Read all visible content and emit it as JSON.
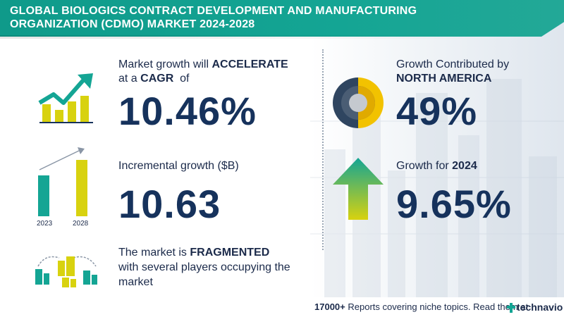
{
  "header": {
    "title_line1": "GLOBAL BIOLOGICS CONTRACT DEVELOPMENT AND MANUFACTURING",
    "title_line2": "ORGANIZATION (CDMO) MARKET 2024-2028"
  },
  "cagr": {
    "text_prefix": "Market growth will ",
    "text_bold": "ACCELERATE",
    "line2_prefix": "at a ",
    "line2_bold": "CAGR",
    "line2_suffix": "  of",
    "value": "10.46%"
  },
  "incremental": {
    "label": "Incremental growth ($B)",
    "value": "10.63",
    "bar_year_start": "2023",
    "bar_year_end": "2028"
  },
  "market": {
    "text_prefix": "The market is ",
    "text_bold": "FRAGMENTED",
    "line2": "with several players occupying the",
    "line3": "market"
  },
  "region": {
    "label": "Growth Contributed by",
    "region_name": "NORTH AMERICA",
    "value": "49%"
  },
  "growth_year": {
    "label_prefix": "Growth for ",
    "year": "2024",
    "value": "9.65%"
  },
  "footer": {
    "count": "17000+",
    "text": " Reports covering niche topics. Read them at",
    "brand": "technavio"
  },
  "colors": {
    "teal": "#14a594",
    "navy": "#16325c",
    "yellow": "#d8d20f",
    "gold": "#f2c200"
  },
  "icons": {
    "growth_chart": "trend-up-chart-icon",
    "bar_chart": "bar-comparison-icon",
    "buildings": "buildings-network-icon",
    "donut": "donut-chart-icon",
    "arrow": "up-arrow-icon"
  }
}
